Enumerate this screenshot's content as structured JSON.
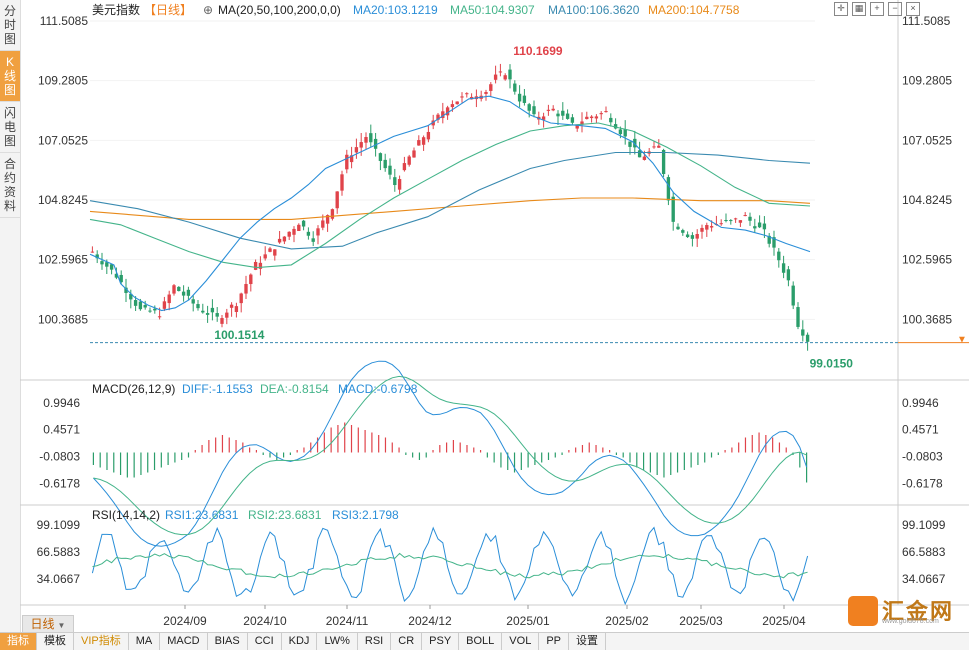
{
  "side_tabs": [
    {
      "label": "分时图",
      "active": false
    },
    {
      "label": "K线图",
      "active": true
    },
    {
      "label": "闪电图",
      "active": false
    },
    {
      "label": "合约资料",
      "active": false
    }
  ],
  "header": {
    "symbol": "美元指数",
    "period": "【日线】",
    "ma_label": "MA(20,50,100,200,0,0)",
    "ma20": "MA20:103.1219",
    "ma50": "MA50:104.9307",
    "ma100": "MA100:106.3620",
    "ma200": "MA200:104.7758"
  },
  "colors": {
    "up": "#e0434a",
    "down": "#2a9d6a",
    "ma20": "#2a8ed8",
    "ma50": "#44b48a",
    "ma100": "#3a8ab0",
    "ma200": "#e88a1a",
    "diff": "#2a8ed8",
    "dea": "#44b48a",
    "rsi1": "#2a8ed8",
    "rsi2": "#44b48a",
    "accent": "#f08020"
  },
  "chart_data": {
    "type": "candlestick",
    "title": "美元指数",
    "price_axis_ticks": [
      "111.5085",
      "109.2805",
      "107.0525",
      "104.8245",
      "102.5965",
      "100.3685"
    ],
    "x_ticks": [
      "2024/09",
      "2024/10",
      "2024/11",
      "2024/12",
      "2025/01",
      "2025/02",
      "2025/03",
      "2025/04"
    ],
    "annotations": {
      "high": "110.1699",
      "low1": "100.1514",
      "low2": "99.0150"
    },
    "marker_price": 99.5,
    "ma_curves": {
      "ma20": [
        [
          101.0,
          102.8
        ],
        [
          108.0,
          102.4
        ],
        [
          110.0,
          101.7
        ],
        [
          114.0,
          101.2
        ],
        [
          118.0,
          100.9
        ],
        [
          122.0,
          100.7
        ],
        [
          126.0,
          100.8
        ],
        [
          130.0,
          101.1
        ],
        [
          135.0,
          101.8
        ],
        [
          140.0,
          102.6
        ],
        [
          145.0,
          103.4
        ],
        [
          150.0,
          104.0
        ],
        [
          155.0,
          104.5
        ],
        [
          160.0,
          104.9
        ],
        [
          165.0,
          105.4
        ],
        [
          170.0,
          106.0
        ],
        [
          175.0,
          106.3
        ],
        [
          180.0,
          106.6
        ],
        [
          190.0,
          107.2
        ],
        [
          200.0,
          107.6
        ],
        [
          206.0,
          108.1
        ],
        [
          212.0,
          108.6
        ],
        [
          218.0,
          108.7
        ],
        [
          224.0,
          108.5
        ],
        [
          230.0,
          108.0
        ],
        [
          236.0,
          107.7
        ],
        [
          245.0,
          107.6
        ],
        [
          252.0,
          107.5
        ],
        [
          260.0,
          107.0
        ],
        [
          266.0,
          106.2
        ],
        [
          272.0,
          105.1
        ],
        [
          278.0,
          104.4
        ],
        [
          286.0,
          103.8
        ],
        [
          293.0,
          103.7
        ],
        [
          299.0,
          103.5
        ],
        [
          305.0,
          103.2
        ],
        [
          312.0,
          102.9
        ]
      ],
      "ma50": [
        [
          101.0,
          104.1
        ],
        [
          110.0,
          103.9
        ],
        [
          120.0,
          103.4
        ],
        [
          130.0,
          102.9
        ],
        [
          140.0,
          102.5
        ],
        [
          150.0,
          102.3
        ],
        [
          160.0,
          102.4
        ],
        [
          170.0,
          103.2
        ],
        [
          180.0,
          104.1
        ],
        [
          190.0,
          104.9
        ],
        [
          200.0,
          105.6
        ],
        [
          210.0,
          106.3
        ],
        [
          220.0,
          106.9
        ],
        [
          230.0,
          107.4
        ],
        [
          240.0,
          107.6
        ],
        [
          250.0,
          107.7
        ],
        [
          260.0,
          107.4
        ],
        [
          270.0,
          106.8
        ],
        [
          280.0,
          106.1
        ],
        [
          290.0,
          105.3
        ],
        [
          300.0,
          104.7
        ],
        [
          312.0,
          104.6
        ]
      ],
      "ma100": [
        [
          101.0,
          104.8
        ],
        [
          115.0,
          104.5
        ],
        [
          130.0,
          104.0
        ],
        [
          145.0,
          103.4
        ],
        [
          160.0,
          103.0
        ],
        [
          175.0,
          103.1
        ],
        [
          185.0,
          103.6
        ],
        [
          200.0,
          104.2
        ],
        [
          215.0,
          105.2
        ],
        [
          230.0,
          106.0
        ],
        [
          240.0,
          106.3
        ],
        [
          255.0,
          106.6
        ],
        [
          270.0,
          106.6
        ],
        [
          285.0,
          106.5
        ],
        [
          300.0,
          106.3
        ],
        [
          312.0,
          106.2
        ]
      ],
      "ma200": [
        [
          101.0,
          104.4
        ],
        [
          130.0,
          104.1
        ],
        [
          160.0,
          104.1
        ],
        [
          190.0,
          104.4
        ],
        [
          210.0,
          104.6
        ],
        [
          230.0,
          104.8
        ],
        [
          245.0,
          104.9
        ],
        [
          260.0,
          104.9
        ],
        [
          280.0,
          104.8
        ],
        [
          300.0,
          104.8
        ],
        [
          312.0,
          104.7
        ]
      ]
    },
    "macd": {
      "label": "MACD(26,12,9)",
      "diff": "DIFF:-1.1553",
      "dea": "DEA:-0.8154",
      "macd": "MACD:-0.6798",
      "ticks": [
        "0.9946",
        "0.4571",
        "-0.0803",
        "-0.6178"
      ],
      "hist": [
        -0.25,
        -0.3,
        -0.35,
        -0.4,
        -0.45,
        -0.5,
        -0.5,
        -0.45,
        -0.4,
        -0.35,
        -0.3,
        -0.25,
        -0.2,
        -0.15,
        -0.1,
        0.05,
        0.15,
        0.25,
        0.3,
        0.35,
        0.3,
        0.25,
        0.2,
        0.1,
        0.05,
        -0.05,
        -0.1,
        -0.15,
        -0.1,
        -0.05,
        0.05,
        0.1,
        0.2,
        0.3,
        0.4,
        0.5,
        0.55,
        0.6,
        0.55,
        0.5,
        0.45,
        0.4,
        0.35,
        0.3,
        0.2,
        0.1,
        -0.05,
        -0.1,
        -0.15,
        -0.1,
        0.05,
        0.15,
        0.2,
        0.25,
        0.2,
        0.15,
        0.1,
        0.05,
        -0.1,
        -0.2,
        -0.3,
        -0.35,
        -0.4,
        -0.35,
        -0.3,
        -0.25,
        -0.2,
        -0.15,
        -0.1,
        -0.05,
        0.05,
        0.1,
        0.15,
        0.2,
        0.15,
        0.1,
        0.05,
        -0.05,
        -0.1,
        -0.2,
        -0.3,
        -0.35,
        -0.4,
        -0.45,
        -0.5,
        -0.45,
        -0.4,
        -0.35,
        -0.3,
        -0.25,
        -0.2,
        -0.1,
        -0.05,
        0.05,
        0.1,
        0.2,
        0.3,
        0.35,
        0.4,
        0.35,
        0.3,
        0.2,
        0.1,
        -0.05,
        -0.3,
        -0.6
      ]
    },
    "rsi": {
      "label": "RSI(14,14,2)",
      "rsi1": "RSI1:23.6831",
      "rsi2": "RSI2:23.6831",
      "rsi3": "RSI3:2.1798",
      "ticks": [
        "99.1099",
        "66.5883",
        "34.0667"
      ]
    }
  },
  "bottom_tabs": [
    "指标",
    "模板",
    "VIP指标",
    "MA",
    "MACD",
    "BIAS",
    "CCI",
    "KDJ",
    "LW%",
    "RSI",
    "CR",
    "PSY",
    "BOLL",
    "VOL",
    "PP",
    "设置"
  ],
  "daily_button": "日线",
  "logo": {
    "text": "汇金网",
    "url": "www.gold678.com"
  }
}
